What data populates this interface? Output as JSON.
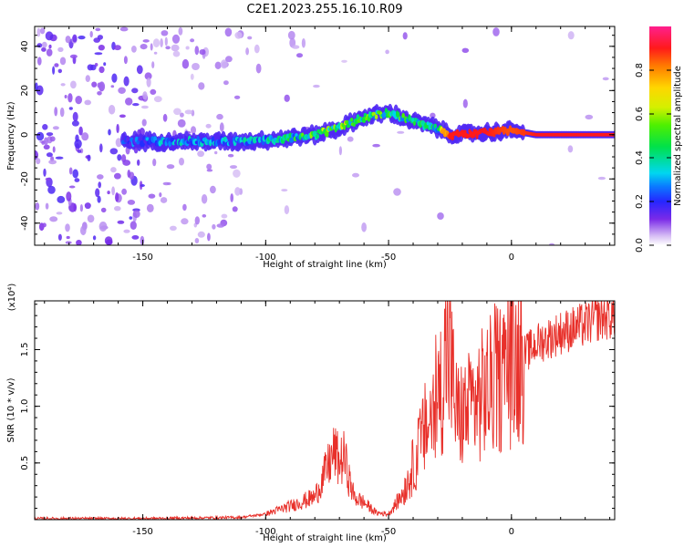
{
  "title": "C2E1.2023.255.16.10.R09",
  "chart_data": [
    {
      "type": "heatmap",
      "xlabel": "Height of straight line (km)",
      "ylabel": "Frequency (Hz)",
      "xlim": [
        -194,
        42
      ],
      "ylim": [
        -50,
        49
      ],
      "xticks": [
        -150,
        -100,
        -50,
        0
      ],
      "yticks": [
        -40,
        -20,
        0,
        20,
        40
      ],
      "colorbar": {
        "label": "Normalized spectral amplitude",
        "range": [
          0,
          1
        ],
        "ticks": [
          0.0,
          0.2,
          0.4,
          0.6,
          0.8
        ],
        "colormap": "rainbow (violet to red)"
      },
      "ridge": {
        "description": "spectral ridge frequency vs height",
        "x": [
          -155,
          -130,
          -110,
          -95,
          -80,
          -70,
          -60,
          -50,
          -40,
          -30,
          -25,
          -10,
          0,
          10,
          42
        ],
        "freq_hz": [
          -3,
          -3,
          -3,
          -2,
          0,
          3,
          8,
          10,
          6,
          3,
          0,
          1,
          2,
          0,
          0
        ],
        "peak_amplitude": [
          0.25,
          0.3,
          0.3,
          0.35,
          0.45,
          0.55,
          0.5,
          0.45,
          0.4,
          0.4,
          0.9,
          0.9,
          0.85,
          0.9,
          0.9
        ]
      },
      "noise": "scattered low-amplitude violet blobs for heights below about -100 km"
    },
    {
      "type": "line",
      "xlabel": "Height of straight line (km)",
      "ylabel": "SNR (10 * v/v)",
      "multiplier": "(x10⁴)",
      "xlim": [
        -194,
        42
      ],
      "ylim": [
        0,
        1.93
      ],
      "xticks": [
        -150,
        -100,
        -50,
        0
      ],
      "yticks": [
        0.5,
        1.0,
        1.5
      ],
      "ytick_labels": [
        "0.5",
        "1.0",
        "1.5"
      ],
      "series": [
        {
          "color": "#e8302a",
          "x": [
            -194,
            -150,
            -110,
            -100,
            -90,
            -80,
            -75,
            -72,
            -70,
            -68,
            -66,
            -64,
            -60,
            -55,
            -50,
            -45,
            -42,
            -38,
            -35,
            -30,
            -26,
            -22,
            -18,
            -12,
            -5,
            0,
            5,
            10,
            20,
            30,
            35,
            42
          ],
          "y": [
            0.01,
            0.01,
            0.02,
            0.05,
            0.12,
            0.2,
            0.45,
            0.6,
            0.5,
            0.55,
            0.35,
            0.2,
            0.15,
            0.06,
            0.05,
            0.2,
            0.35,
            0.6,
            0.8,
            1.0,
            1.55,
            0.9,
            0.95,
            1.1,
            1.25,
            1.35,
            1.45,
            1.55,
            1.65,
            1.72,
            1.78,
            1.8
          ]
        }
      ]
    }
  ]
}
